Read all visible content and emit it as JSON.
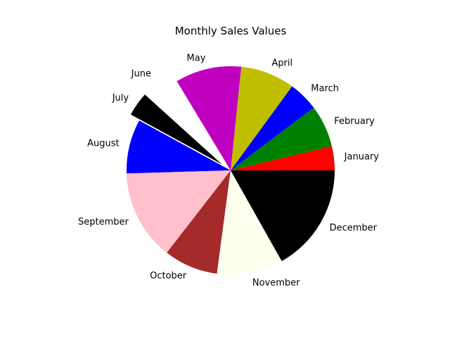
{
  "chart_data": {
    "type": "pie",
    "title": "Monthly Sales Values",
    "start_angle_deg": 0,
    "direction": "counterclockwise",
    "slices": [
      {
        "label": "January",
        "value": 4,
        "color": "#ff0000",
        "exploded": false
      },
      {
        "label": "February",
        "value": 7,
        "color": "#008000",
        "exploded": false
      },
      {
        "label": "March",
        "value": 5,
        "color": "#0000ff",
        "exploded": false
      },
      {
        "label": "April",
        "value": 9,
        "color": "#bfbf00",
        "exploded": false
      },
      {
        "label": "May",
        "value": 11,
        "color": "#bf00bf",
        "exploded": false
      },
      {
        "label": "June",
        "value": 5,
        "color": "#ffffff",
        "exploded": true
      },
      {
        "label": "July",
        "value": 4,
        "color": "#000000",
        "exploded": true
      },
      {
        "label": "August",
        "value": 9,
        "color": "#0000ff",
        "exploded": false
      },
      {
        "label": "September",
        "value": 15,
        "color": "#ffc0cb",
        "exploded": false
      },
      {
        "label": "October",
        "value": 9,
        "color": "#a52a2a",
        "exploded": false
      },
      {
        "label": "November",
        "value": 11,
        "color": "#fffff0",
        "exploded": false
      },
      {
        "label": "December",
        "value": 18,
        "color": "#000000",
        "exploded": false
      }
    ]
  }
}
